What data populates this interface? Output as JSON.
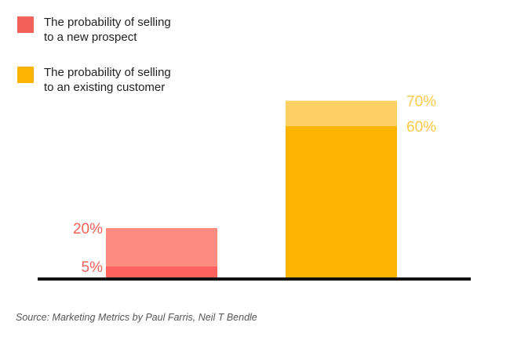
{
  "chart_data": {
    "type": "bar",
    "legend": [
      {
        "lines": [
          "The probability of selling",
          "to a new prospect"
        ],
        "color": "#f2615a"
      },
      {
        "lines": [
          "The probability of selling",
          "to an existing customer"
        ],
        "color": "#fbb400"
      }
    ],
    "bars": [
      {
        "series": "new-prospect",
        "low": 5,
        "high": 20,
        "low_label": "5%",
        "high_label": "20%",
        "low_color": "#fd625e",
        "high_color": "#fd8b80",
        "label_color": "#f2615a"
      },
      {
        "series": "existing-customer",
        "low": 60,
        "high": 70,
        "low_label": "60%",
        "high_label": "70%",
        "low_color": "#fbb400",
        "high_color": "#fdd164",
        "label_color": "#fbc949"
      }
    ],
    "ylim": [
      0,
      70
    ],
    "grid": false,
    "legend_placement": "top-left"
  },
  "source": "Source: Marketing Metrics by Paul Farris, Neil T Bendle",
  "baseline_color": "#111111"
}
